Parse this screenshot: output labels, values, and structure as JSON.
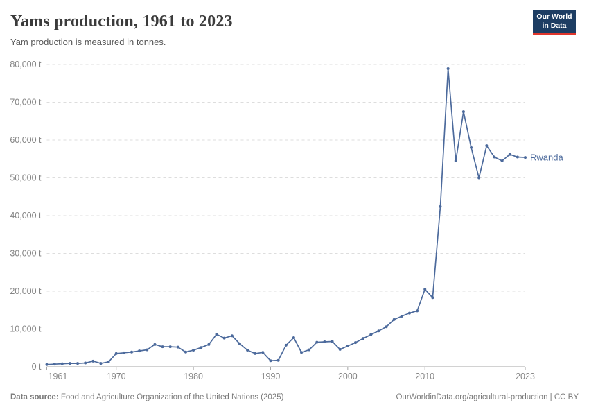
{
  "header": {
    "title": "Yams production, 1961 to 2023",
    "subtitle": "Yam production is measured in tonnes."
  },
  "logo": {
    "line1": "Our World",
    "line2": "in Data"
  },
  "series_label": "Rwanda",
  "footer": {
    "source_label": "Data source:",
    "source_text": " Food and Agriculture Organization of the United Nations (2025)",
    "right_text": "OurWorldinData.org/agricultural-production | CC BY"
  },
  "colors": {
    "line": "#4C6A9C",
    "grid": "#dddddd",
    "axis": "#a5a5a5",
    "tick_label": "#858585",
    "logo_bg": "#1d3d63",
    "logo_red": "#e0362c"
  },
  "chart_data": {
    "type": "line",
    "title": "Yams production, 1961 to 2023",
    "unit": "t",
    "xlabel": "",
    "ylabel": "tonnes",
    "ylim": [
      0,
      80000
    ],
    "yticks": [
      0,
      10000,
      20000,
      30000,
      40000,
      50000,
      60000,
      70000,
      80000
    ],
    "xticks": [
      1961,
      1970,
      1980,
      1990,
      2000,
      2010,
      2023
    ],
    "grid": "dashed-horizontal",
    "legend_position": "end-of-line",
    "x": [
      1961,
      1962,
      1963,
      1964,
      1965,
      1966,
      1967,
      1968,
      1969,
      1970,
      1971,
      1972,
      1973,
      1974,
      1975,
      1976,
      1977,
      1978,
      1979,
      1980,
      1981,
      1982,
      1983,
      1984,
      1985,
      1986,
      1987,
      1988,
      1989,
      1990,
      1991,
      1992,
      1993,
      1994,
      1995,
      1996,
      1997,
      1998,
      1999,
      2000,
      2001,
      2002,
      2003,
      2004,
      2005,
      2006,
      2007,
      2008,
      2009,
      2010,
      2011,
      2012,
      2013,
      2014,
      2015,
      2016,
      2017,
      2018,
      2019,
      2020,
      2021,
      2022,
      2023
    ],
    "series": [
      {
        "name": "Rwanda",
        "values": [
          600,
          700,
          800,
          900,
          900,
          1000,
          1500,
          900,
          1300,
          3500,
          3700,
          3900,
          4200,
          4500,
          5900,
          5300,
          5300,
          5200,
          3900,
          4400,
          5100,
          5900,
          8600,
          7600,
          8200,
          6100,
          4400,
          3500,
          3800,
          1600,
          1700,
          5700,
          7700,
          3800,
          4500,
          6500,
          6600,
          6700,
          4600,
          5500,
          6400,
          7500,
          8500,
          9500,
          10600,
          12500,
          13400,
          14200,
          14800,
          20500,
          18300,
          42400,
          78900,
          54500,
          67500,
          58000,
          50000,
          58500,
          55500,
          54500,
          56200,
          55500,
          55400
        ]
      }
    ]
  }
}
